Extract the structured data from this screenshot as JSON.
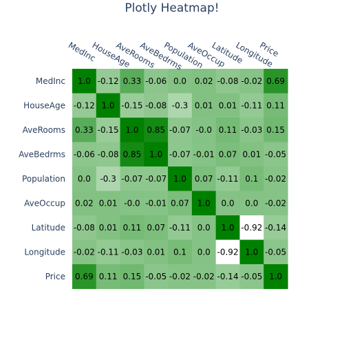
{
  "chart_data": {
    "type": "heatmap",
    "title": "Plotly Heatmap!",
    "x_labels": [
      "MedInc",
      "HouseAge",
      "AveRooms",
      "AveBedrms",
      "Population",
      "AveOccup",
      "Latitude",
      "Longitude",
      "Price"
    ],
    "y_labels": [
      "MedInc",
      "HouseAge",
      "AveRooms",
      "AveBedrms",
      "Population",
      "AveOccup",
      "Latitude",
      "Longitude",
      "Price"
    ],
    "z": [
      [
        1.0,
        -0.12,
        0.33,
        -0.06,
        0.0,
        0.02,
        -0.08,
        -0.02,
        0.69
      ],
      [
        -0.12,
        1.0,
        -0.15,
        -0.08,
        -0.3,
        0.01,
        0.01,
        -0.11,
        0.11
      ],
      [
        0.33,
        -0.15,
        1.0,
        0.85,
        -0.07,
        -0.0,
        0.11,
        -0.03,
        0.15
      ],
      [
        -0.06,
        -0.08,
        0.85,
        1.0,
        -0.07,
        -0.01,
        0.07,
        0.01,
        -0.05
      ],
      [
        0.0,
        -0.3,
        -0.07,
        -0.07,
        1.0,
        0.07,
        -0.11,
        0.1,
        -0.02
      ],
      [
        0.02,
        0.01,
        -0.0,
        -0.01,
        0.07,
        1.0,
        0.0,
        0.0,
        -0.02
      ],
      [
        -0.08,
        0.01,
        0.11,
        0.07,
        -0.11,
        0.0,
        1.0,
        -0.92,
        -0.14
      ],
      [
        -0.02,
        -0.11,
        -0.03,
        0.01,
        0.1,
        0.0,
        -0.92,
        1.0,
        -0.05
      ],
      [
        0.69,
        0.11,
        0.15,
        -0.05,
        -0.02,
        -0.02,
        -0.14,
        -0.05,
        1.0
      ]
    ],
    "text": [
      [
        "1.0",
        "-0.12",
        "0.33",
        "-0.06",
        "0.0",
        "0.02",
        "-0.08",
        "-0.02",
        "0.69"
      ],
      [
        "-0.12",
        "1.0",
        "-0.15",
        "-0.08",
        "-0.3",
        "0.01",
        "0.01",
        "-0.11",
        "0.11"
      ],
      [
        "0.33",
        "-0.15",
        "1.0",
        "0.85",
        "-0.07",
        "-0.0",
        "0.11",
        "-0.03",
        "0.15"
      ],
      [
        "-0.06",
        "-0.08",
        "0.85",
        "1.0",
        "-0.07",
        "-0.01",
        "0.07",
        "0.01",
        "-0.05"
      ],
      [
        "0.0",
        "-0.3",
        "-0.07",
        "-0.07",
        "1.0",
        "0.07",
        "-0.11",
        "0.1",
        "-0.02"
      ],
      [
        "0.02",
        "0.01",
        "-0.0",
        "-0.01",
        "0.07",
        "1.0",
        "0.0",
        "0.0",
        "-0.02"
      ],
      [
        "-0.08",
        "0.01",
        "0.11",
        "0.07",
        "-0.11",
        "0.0",
        "1.0",
        "-0.92",
        "-0.14"
      ],
      [
        "-0.02",
        "-0.11",
        "-0.03",
        "0.01",
        "0.1",
        "0.0",
        "-0.92",
        "1.0",
        "-0.05"
      ],
      [
        "0.69",
        "0.11",
        "0.15",
        "-0.05",
        "-0.02",
        "-0.02",
        "-0.14",
        "-0.05",
        "1.0"
      ]
    ],
    "zlim": [
      -0.92,
      1.0
    ],
    "colorscale": {
      "low": "#ffffff",
      "high": "#008000"
    },
    "x_axis_side": "top",
    "legend": "none"
  }
}
